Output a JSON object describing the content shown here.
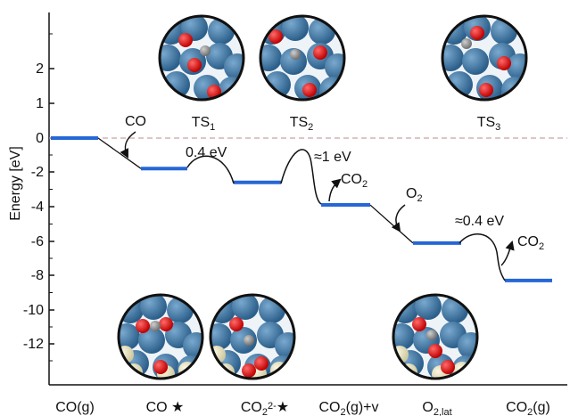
{
  "chart_data": {
    "type": "energy-profile",
    "ylabel": "Energy [eV]",
    "ylim": [
      -14,
      4
    ],
    "y_ticks": [
      2,
      1,
      0,
      -2,
      -4,
      -6,
      -8,
      -10,
      -12
    ],
    "y_tick_labels": [
      "2",
      "1",
      "0",
      "-2",
      "-4",
      "-6",
      "-8",
      "-10",
      "-12"
    ],
    "categories": [
      "CO(g)",
      "CO*",
      "CO2^2-*",
      "CO2(g)+v",
      "O2,lat",
      "CO2(g)"
    ],
    "levels": [
      0,
      -1.8,
      -2.6,
      -3.9,
      -6.1,
      -8.3
    ],
    "zero_line": "dashed",
    "level_color": "#2667d6",
    "ts_labels": [
      "TS1",
      "TS2",
      "TS3"
    ],
    "annotations": [
      "CO",
      "0.4 eV",
      "≈1 eV",
      "CO2",
      "O2",
      "≈0.4 eV",
      "CO2"
    ]
  }
}
